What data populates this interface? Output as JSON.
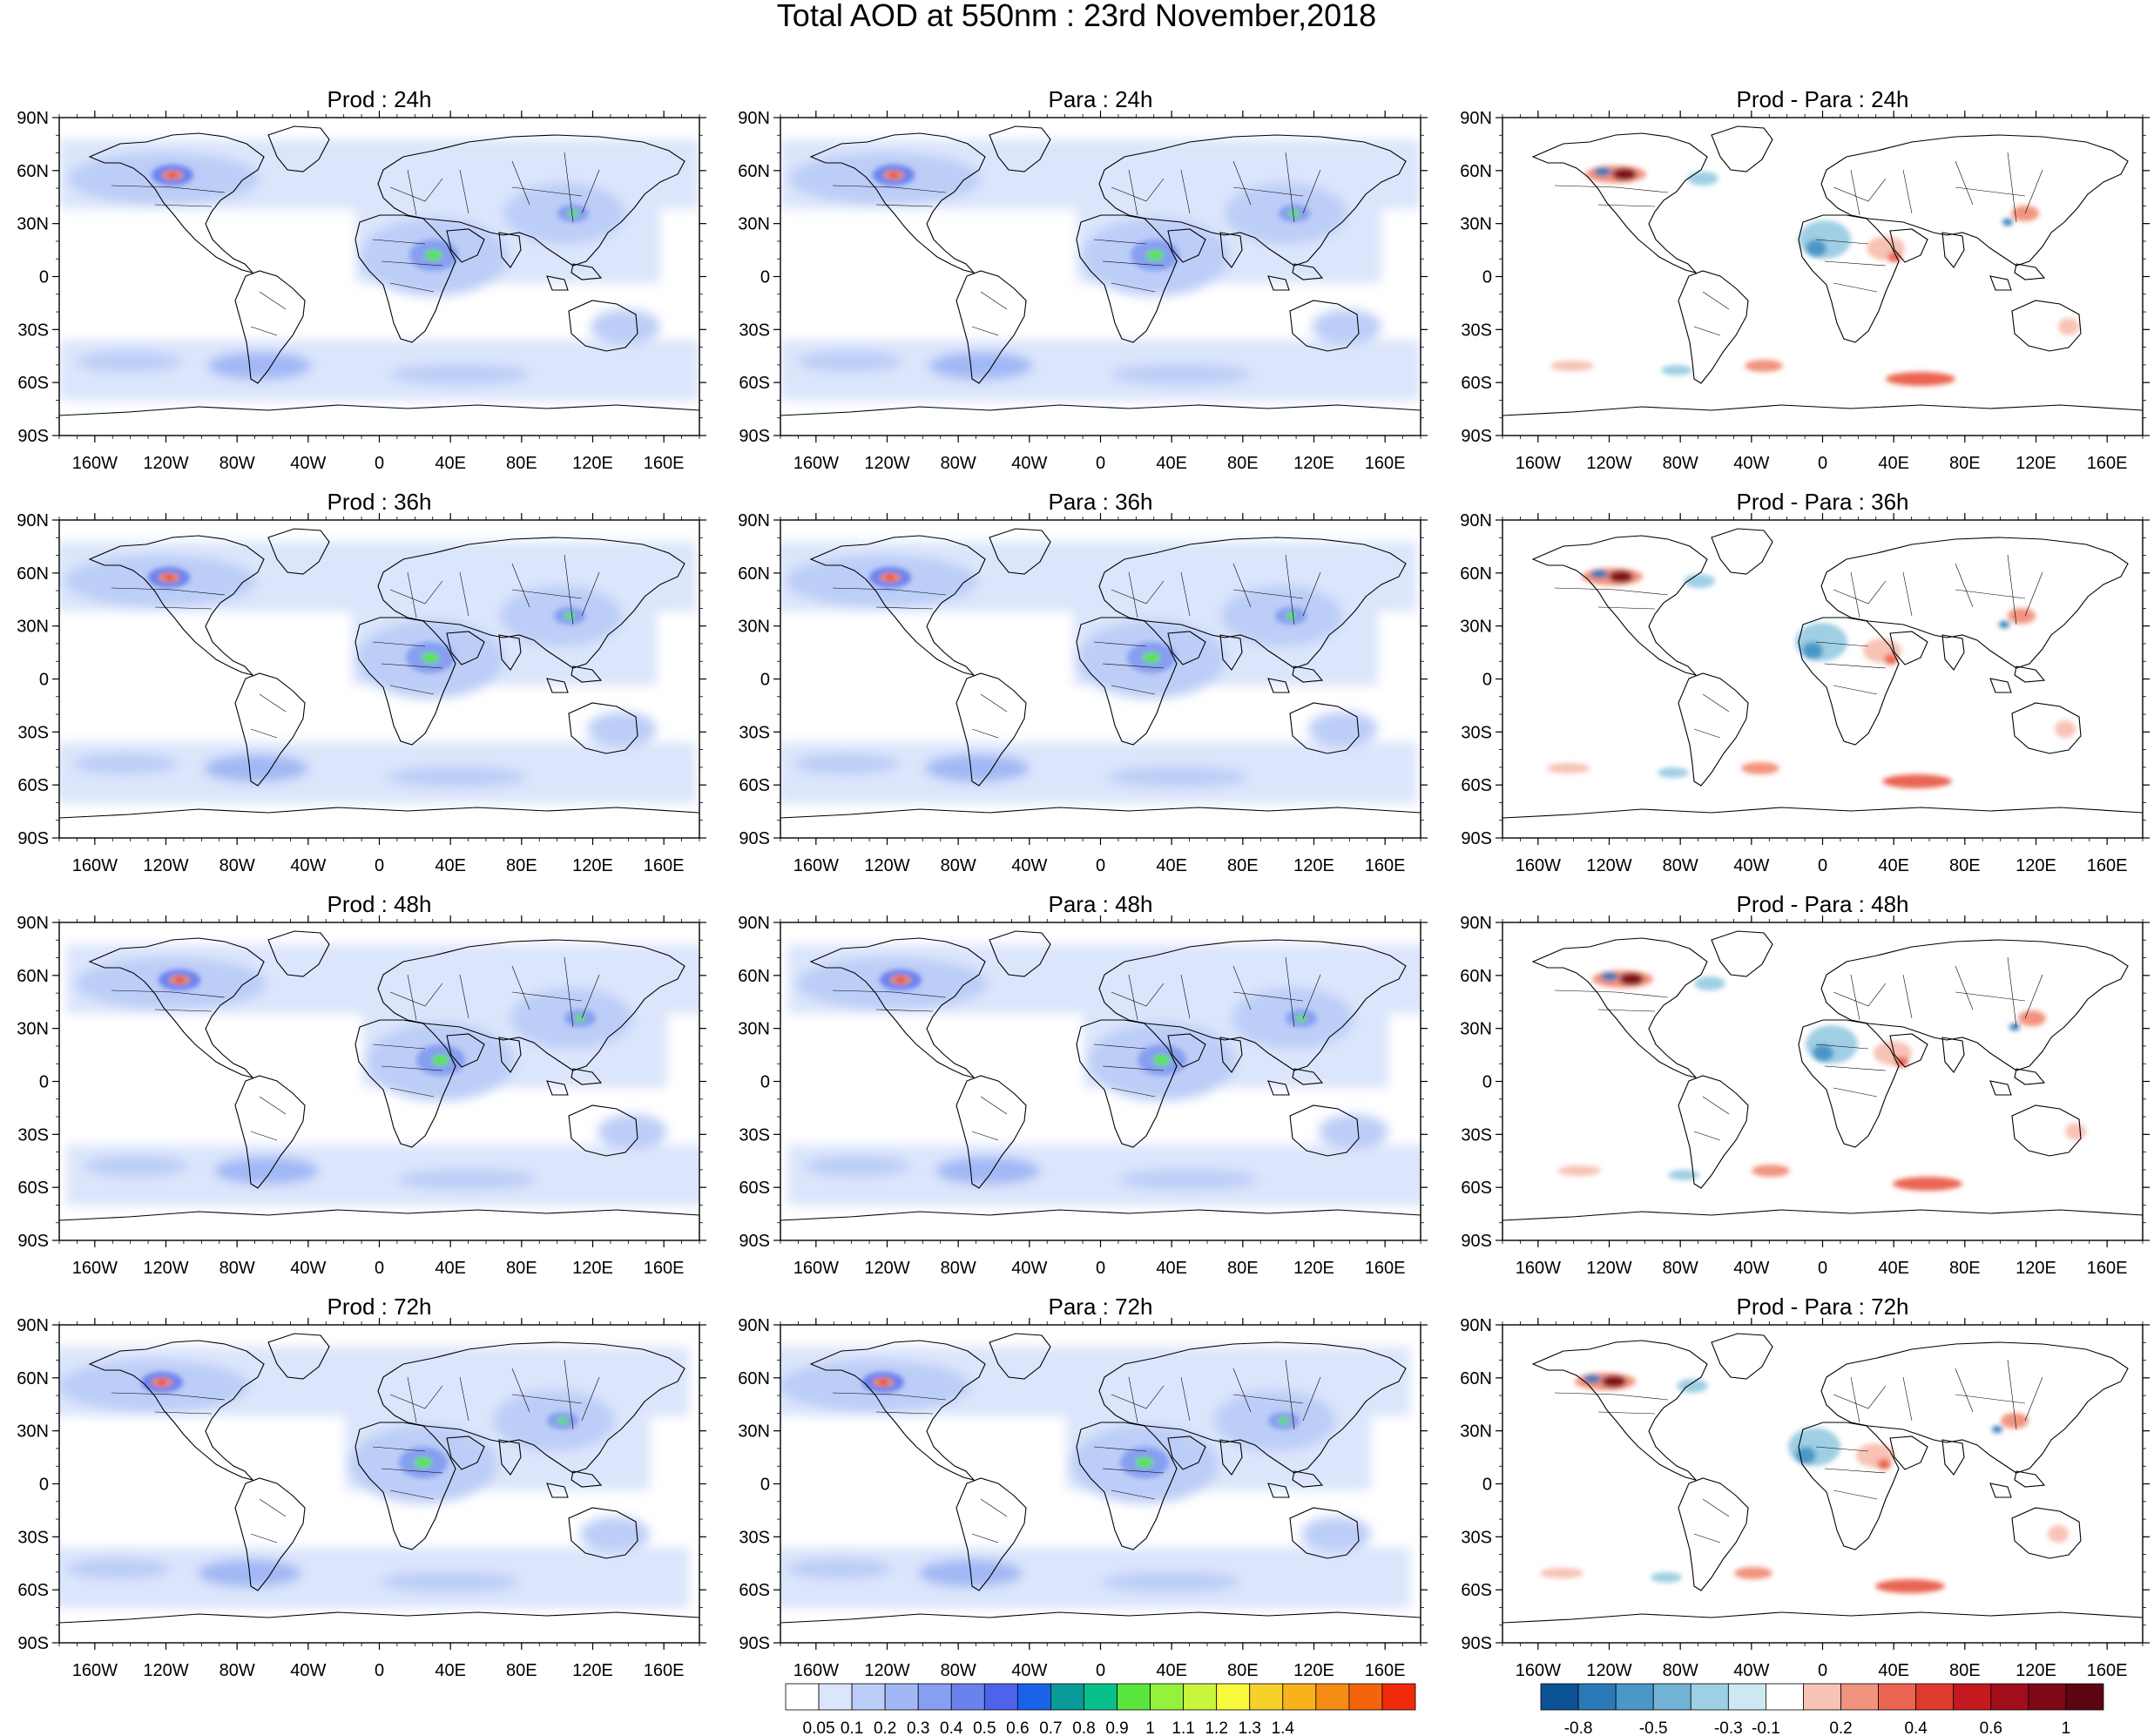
{
  "title": "Total AOD at 550nm : 23rd November,2018",
  "column_titles": [
    "Prod",
    "Para",
    "Prod - Para"
  ],
  "lead_times": [
    "24h",
    "36h",
    "48h",
    "72h"
  ],
  "title_separator": " : ",
  "lat_labels": [
    "90N",
    "60N",
    "30N",
    "0",
    "30S",
    "60S",
    "90S"
  ],
  "lon_labels": [
    "160W",
    "120W",
    "80W",
    "40W",
    "0",
    "40E",
    "80E",
    "120E",
    "160E"
  ],
  "colors": {
    "aod": [
      "#ffffff",
      "#dbe5fb",
      "#bccdf7",
      "#a1b8f5",
      "#879ff0",
      "#6a82ee",
      "#4e63ec",
      "#1a63e8",
      "#0a9a9a",
      "#0ac08a",
      "#5ae63c",
      "#95f23c",
      "#c9f53c",
      "#fafa3c",
      "#f8d02a",
      "#f7b21c",
      "#f58c14",
      "#f3640c",
      "#f02a0a"
    ],
    "diff": [
      "#0b5394",
      "#2c79b8",
      "#4a97c8",
      "#73b3d6",
      "#9fcfe4",
      "#cde8f2",
      "#ffffff",
      "#f7c3b5",
      "#f2937e",
      "#ea6551",
      "#de3a2e",
      "#c4191e",
      "#a10d1a",
      "#7e0815",
      "#5b0510"
    ],
    "land_outline": "#000000"
  },
  "legend_aod": {
    "labels": [
      "0.05",
      "0.1",
      "0.2",
      "0.3",
      "0.4",
      "0.5",
      "0.6",
      "0.7",
      "0.8",
      "0.9",
      "1",
      "1.1",
      "1.2",
      "1.3",
      "1.4"
    ]
  },
  "legend_diff": {
    "labels": [
      "-0.8",
      "-0.5",
      "-0.3",
      "-0.1",
      "0.2",
      "0.4",
      "0.6",
      "1"
    ]
  }
}
